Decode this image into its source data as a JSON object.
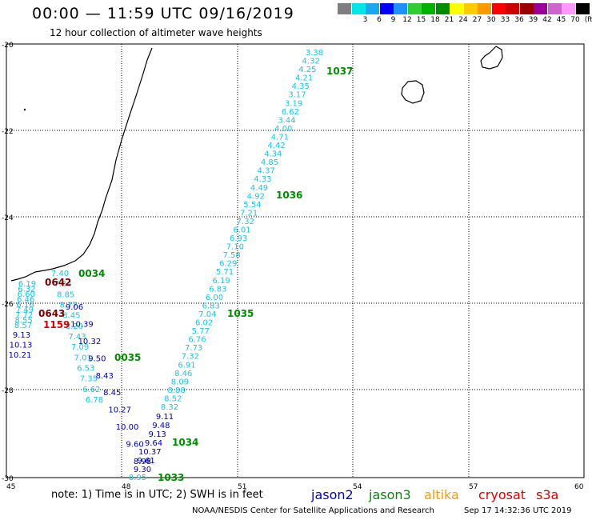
{
  "header": {
    "title": "00:00 — 11:59 UTC 09/16/2019",
    "subtitle": "12 hour collection of altimeter wave heights"
  },
  "legend": {
    "unit": "(ft)",
    "swatches": [
      {
        "label": "",
        "color": "#7f7f7f"
      },
      {
        "label": "3",
        "color": "#00e6e6"
      },
      {
        "label": "6",
        "color": "#19a8f0"
      },
      {
        "label": "9",
        "color": "#0000ff"
      },
      {
        "label": "12",
        "color": "#1e90ff"
      },
      {
        "label": "15",
        "color": "#33cc33"
      },
      {
        "label": "18",
        "color": "#00b300"
      },
      {
        "label": "21",
        "color": "#008c00"
      },
      {
        "label": "24",
        "color": "#ffff00"
      },
      {
        "label": "27",
        "color": "#ffcc00"
      },
      {
        "label": "30",
        "color": "#ff9900"
      },
      {
        "label": "33",
        "color": "#ff0000"
      },
      {
        "label": "36",
        "color": "#cc0000"
      },
      {
        "label": "39",
        "color": "#990000"
      },
      {
        "label": "42",
        "color": "#990099"
      },
      {
        "label": "45",
        "color": "#cc66cc"
      },
      {
        "label": "70",
        "color": "#ff99ff"
      },
      {
        "label": "",
        "color": "#000000"
      }
    ]
  },
  "axes": {
    "lat_labels": [
      "-20",
      "-22",
      "-24",
      "-26",
      "-28",
      "-30"
    ],
    "lon_labels": [
      "45",
      "48",
      "51",
      "54",
      "57",
      "60"
    ]
  },
  "colors": {
    "jason2": "#0000cc",
    "jason3": "#008c00",
    "altika": "#ff9900",
    "cryosat": "#dd0000",
    "s3a": "#dd0000",
    "cyan": "#19c3e6",
    "dark_blue": "#0000aa",
    "dark_red": "#7a0000",
    "red": "#dd0000"
  },
  "tracks": {
    "ascending_cyan": [
      "3.38",
      "4.32",
      "4.25",
      "4.21",
      "4.35",
      "3.17",
      "3.19",
      "6.62",
      "3.44",
      "4.00",
      "4.71",
      "4.42",
      "4.34",
      "4.85",
      "4.37",
      "4.33",
      "4.49",
      "4.92",
      "5.54",
      "7.21",
      "7.32",
      "6.01",
      "6.93",
      "7.10",
      "7.58",
      "6.29",
      "5.71",
      "6.19",
      "6.83",
      "6.00",
      "6.83",
      "7.04",
      "6.02",
      "5.77",
      "6.76",
      "7.73",
      "7.32",
      "6.91",
      "8.46",
      "8.09",
      "8.88",
      "8.52",
      "8.32"
    ],
    "ascending_blue": [
      "9.11",
      "9.48",
      "9.13",
      "9.64",
      "10.37",
      "9.61",
      "9.30"
    ],
    "descending_cyan": [
      "7.40",
      "7.24",
      "8.85",
      "8.77",
      "8.45",
      "8.20",
      "7.43",
      "7.09",
      "7.01",
      "6.53",
      "7.35",
      "6.62",
      "6.78"
    ],
    "descending_blue": [
      "9.06",
      "10.39",
      "10.32",
      "9.50",
      "8.43",
      "8.45",
      "10.27",
      "10.00",
      "9.60",
      "8.98"
    ],
    "coastal_cyan": [
      "6.19",
      "6.32",
      "6.60",
      "6.46",
      "6.16",
      "7.49",
      "7.72",
      "8.55",
      "8.57"
    ],
    "coastal_blue": [
      "9.13",
      "10.13",
      "10.21"
    ],
    "bottom_cyan": "8.95"
  },
  "time_labels": {
    "t1037": "1037",
    "t1036": "1036",
    "t1035": "1035",
    "t1034": "1034",
    "t1033": "1033",
    "t0034": "0034",
    "t0035": "0035",
    "t0642": "0642",
    "t0643": "0643",
    "t1159": "1159"
  },
  "footer": {
    "note": "note: 1) Time is in UTC; 2) SWH is in feet",
    "satellites": [
      {
        "name": "jason2",
        "color": "#0000cc"
      },
      {
        "name": "jason3",
        "color": "#008c00"
      },
      {
        "name": "altika",
        "color": "#ff9900"
      },
      {
        "name": "cryosat",
        "color": "#dd0000"
      },
      {
        "name": "s3a",
        "color": "#dd0000"
      }
    ],
    "credit": "NOAA/NESDIS Center for Satellite Applications and Research",
    "timestamp": "Sep 17 14:32:36 UTC 2019"
  }
}
